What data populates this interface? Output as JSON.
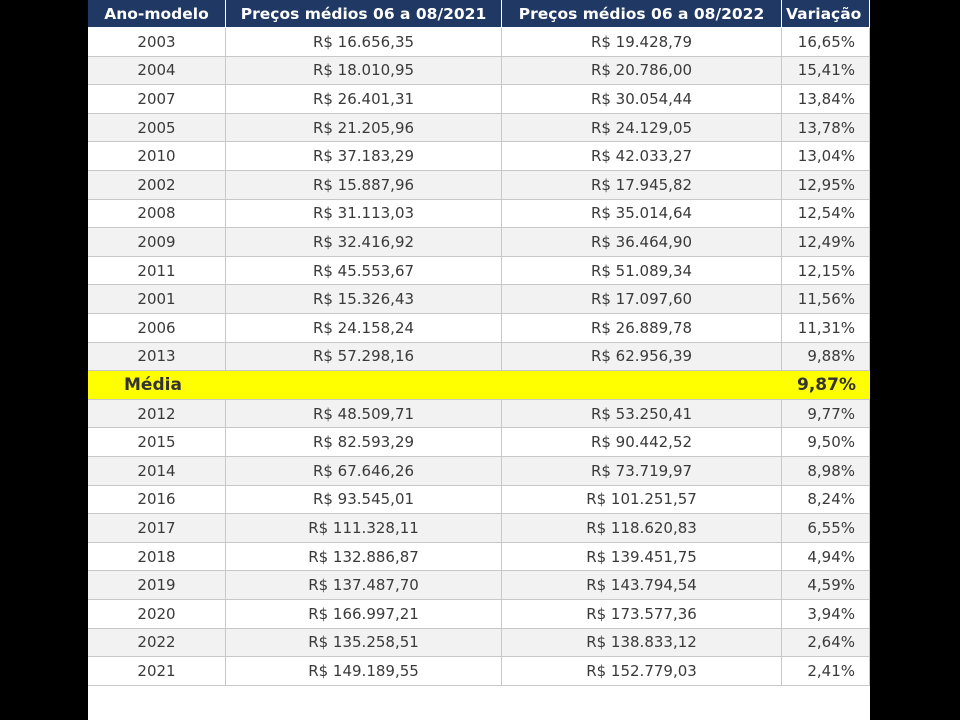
{
  "table": {
    "header": [
      "Ano-modelo",
      "Preços médios 06 a 08/2021",
      "Preços médios 06 a 08/2022",
      "Variação"
    ],
    "rows": [
      [
        "2003",
        "R$ 16.656,35",
        "R$ 19.428,79",
        "16,65%"
      ],
      [
        "2004",
        "R$ 18.010,95",
        "R$ 20.786,00",
        "15,41%"
      ],
      [
        "2007",
        "R$ 26.401,31",
        "R$ 30.054,44",
        "13,84%"
      ],
      [
        "2005",
        "R$ 21.205,96",
        "R$ 24.129,05",
        "13,78%"
      ],
      [
        "2010",
        "R$ 37.183,29",
        "R$ 42.033,27",
        "13,04%"
      ],
      [
        "2002",
        "R$ 15.887,96",
        "R$ 17.945,82",
        "12,95%"
      ],
      [
        "2008",
        "R$ 31.113,03",
        "R$ 35.014,64",
        "12,54%"
      ],
      [
        "2009",
        "R$ 32.416,92",
        "R$ 36.464,90",
        "12,49%"
      ],
      [
        "2011",
        "R$ 45.553,67",
        "R$ 51.089,34",
        "12,15%"
      ],
      [
        "2001",
        "R$ 15.326,43",
        "R$ 17.097,60",
        "11,56%"
      ],
      [
        "2006",
        "R$ 24.158,24",
        "R$ 26.889,78",
        "11,31%"
      ],
      [
        "2013",
        "R$ 57.298,16",
        "R$ 62.956,39",
        "9,88%"
      ]
    ],
    "average": {
      "label": "Média",
      "value": "9,87%"
    },
    "rows_after": [
      [
        "2012",
        "R$ 48.509,71",
        "R$ 53.250,41",
        "9,77%"
      ],
      [
        "2015",
        "R$ 82.593,29",
        "R$ 90.442,52",
        "9,50%"
      ],
      [
        "2014",
        "R$ 67.646,26",
        "R$ 73.719,97",
        "8,98%"
      ],
      [
        "2016",
        "R$ 93.545,01",
        "R$ 101.251,57",
        "8,24%"
      ],
      [
        "2017",
        "R$ 111.328,11",
        "R$ 118.620,83",
        "6,55%"
      ],
      [
        "2018",
        "R$ 132.886,87",
        "R$ 139.451,75",
        "4,94%"
      ],
      [
        "2019",
        "R$ 137.487,70",
        "R$ 143.794,54",
        "4,59%"
      ],
      [
        "2020",
        "R$ 166.997,21",
        "R$ 173.577,36",
        "3,94%"
      ],
      [
        "2022",
        "R$ 135.258,51",
        "R$ 138.833,12",
        "2,64%"
      ],
      [
        "2021",
        "R$ 149.189,55",
        "R$ 152.779,03",
        "2,41%"
      ]
    ]
  }
}
